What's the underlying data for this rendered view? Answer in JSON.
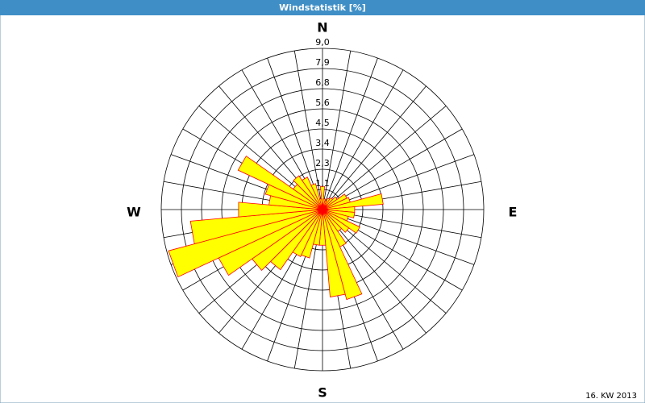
{
  "chart_data": {
    "type": "windrose",
    "title": "Windstatistik [%]",
    "values": [
      1.3,
      0.6,
      0.5,
      0.7,
      0.8,
      1.0,
      1.5,
      1.6,
      3.4,
      1.8,
      1.8,
      1.5,
      2.3,
      1.8,
      1.5,
      2.3,
      5.2,
      4.9,
      2.0,
      2.0,
      2.8,
      2.9,
      4.1,
      4.8,
      6.4,
      8.9,
      7.4,
      4.7,
      3.0,
      3.3,
      5.2,
      2.0,
      2.3,
      2.0,
      1.5,
      0.6
    ],
    "color": "#ffff00",
    "edge_color": "#ff0000",
    "ylim": [
      0,
      9.0
    ],
    "yticks": [
      {
        "value": 1.125,
        "label": "1,1"
      },
      {
        "value": 2.25,
        "label": "2,3"
      },
      {
        "value": 3.375,
        "label": "3,4"
      },
      {
        "value": 4.5,
        "label": "4,5"
      },
      {
        "value": 5.625,
        "label": "5,6"
      },
      {
        "value": 6.75,
        "label": "6,8"
      },
      {
        "value": 7.875,
        "label": "7,9"
      },
      {
        "value": 9.0,
        "label": "9,0"
      }
    ],
    "grid": true,
    "compass_labels": [
      "N",
      "E",
      "S",
      "W"
    ],
    "footnote": "16. KW 2013"
  }
}
